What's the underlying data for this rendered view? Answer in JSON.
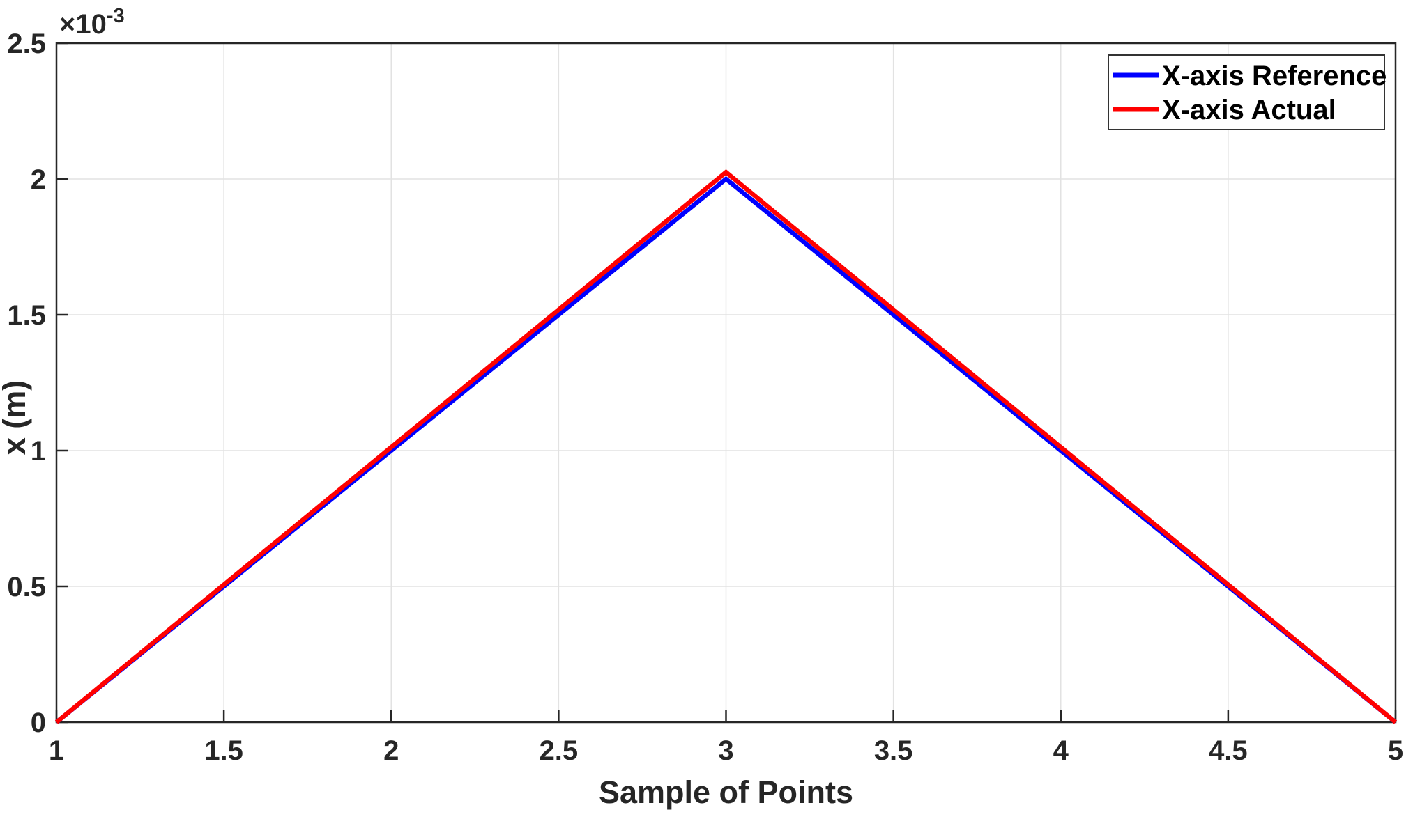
{
  "figure": {
    "background": "#FFFFFF",
    "plot_background": "#FFFFFF",
    "axes_color": "#262626",
    "grid_color": "#E2E2E2",
    "legend_border_color": "#333333",
    "legend_text_color": "#000000"
  },
  "chart_data": {
    "type": "line",
    "title": "",
    "xlabel": "Sample of Points",
    "ylabel": "x (m)",
    "y_offset_label": {
      "base": "×10",
      "exponent": "-3"
    },
    "xlim": [
      1,
      5
    ],
    "ylim": [
      0,
      0.0025
    ],
    "grid": true,
    "xticks": [
      1,
      1.5,
      2,
      2.5,
      3,
      3.5,
      4,
      4.5,
      5
    ],
    "xtick_labels": [
      "1",
      "1.5",
      "2",
      "2.5",
      "3",
      "3.5",
      "4",
      "4.5",
      "5"
    ],
    "yticks": [
      0,
      0.0005,
      0.001,
      0.0015,
      0.002,
      0.0025
    ],
    "ytick_labels": [
      "0",
      "0.5",
      "1",
      "1.5",
      "2",
      "2.5"
    ],
    "legend": {
      "position": "top-right"
    },
    "series": [
      {
        "name": "X-axis Reference",
        "color": "#0000FF",
        "x": [
          1,
          3,
          5
        ],
        "y": [
          0,
          0.002,
          0
        ]
      },
      {
        "name": "X-axis Actual",
        "color": "#FF0000",
        "x": [
          1,
          3,
          5
        ],
        "y": [
          0,
          0.002025,
          0
        ]
      }
    ]
  }
}
